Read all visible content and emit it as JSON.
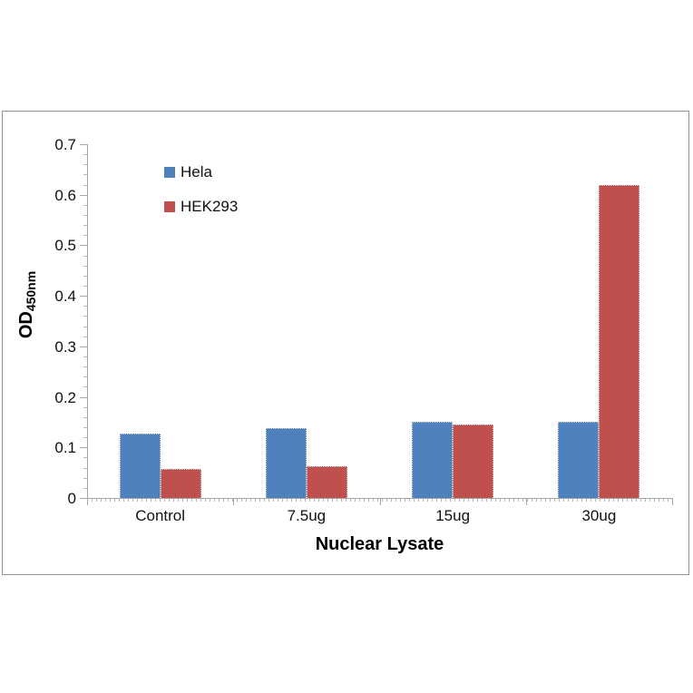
{
  "figure": {
    "y_axis_title_main": "OD",
    "y_axis_title_sub": "450nm"
  },
  "chart_data": {
    "type": "bar",
    "title": "",
    "xlabel": "Nuclear Lysate",
    "ylabel": "OD450nm",
    "categories": [
      "Control",
      "7.5ug",
      "15ug",
      "30ug"
    ],
    "series": [
      {
        "name": "Hela",
        "color": "#4F81BD",
        "values": [
          0.128,
          0.138,
          0.15,
          0.151
        ]
      },
      {
        "name": "HEK293",
        "color": "#C0504D",
        "values": [
          0.057,
          0.062,
          0.146,
          0.62
        ]
      }
    ],
    "ylim": [
      0,
      0.7
    ],
    "ytick_interval": 0.1,
    "ytick_labels": [
      "0",
      "0.1",
      "0.2",
      "0.3",
      "0.4",
      "0.5",
      "0.6",
      "0.7"
    ],
    "yminor_interval": 0.02,
    "grid": false,
    "legend_position": "inside-upper-left"
  },
  "colors": {
    "axis": "#a6a6a6",
    "frame_border": "#929292",
    "hela": "#4F81BD",
    "hek293": "#C0504D"
  }
}
